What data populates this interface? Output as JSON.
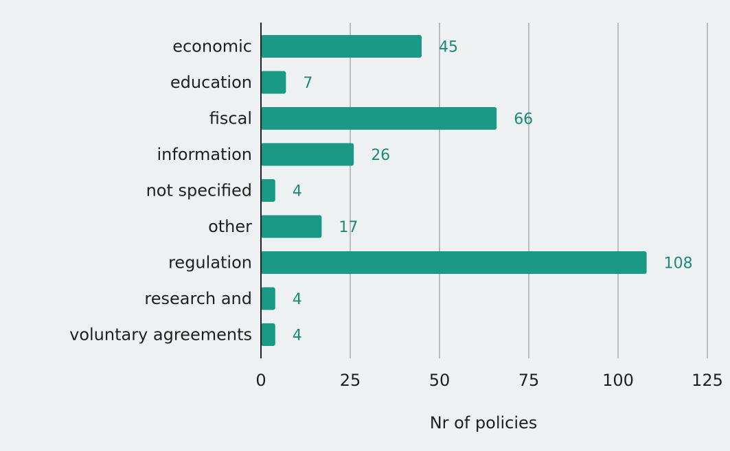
{
  "chart_data": {
    "type": "bar",
    "orientation": "horizontal",
    "title": "",
    "xlabel": "Nr of policies",
    "ylabel": "",
    "categories": [
      "economic",
      "education",
      "fiscal",
      "information",
      "not specified",
      "other",
      "regulation",
      "research and",
      "voluntary agreements"
    ],
    "values": [
      45,
      7,
      66,
      26,
      4,
      17,
      108,
      4,
      4
    ],
    "value_labels": [
      "45",
      "7",
      "66",
      "26",
      "4",
      "17",
      "108",
      "4",
      "4"
    ],
    "xlim": [
      0,
      125
    ],
    "xticks": [
      0,
      25,
      50,
      75,
      100,
      125
    ],
    "xtick_labels": [
      "0",
      "25",
      "50",
      "75",
      "100",
      "125"
    ],
    "grid": "vertical",
    "legend": "none",
    "bar_color": "#1a9a86",
    "label_color": "#1a8a78",
    "background_color": "#eef1f2"
  }
}
